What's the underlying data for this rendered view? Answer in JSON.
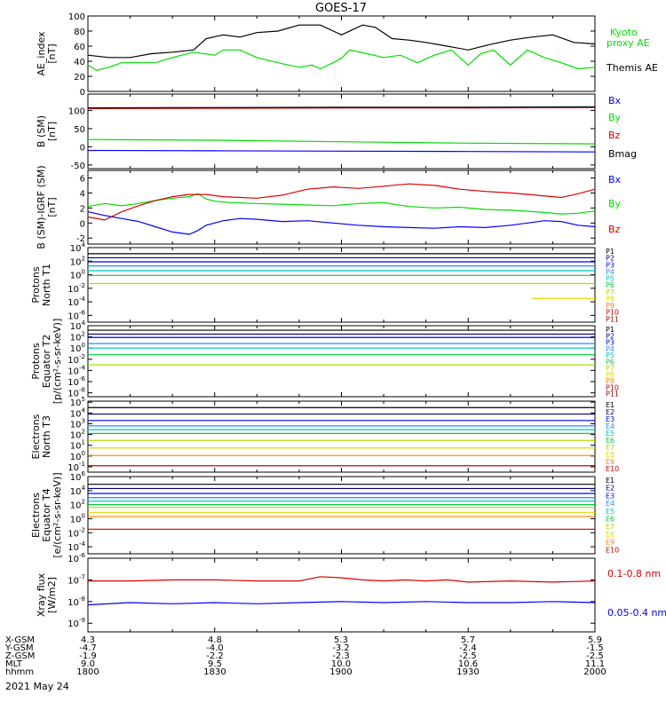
{
  "title": "GOES-17",
  "date_label": "2021 May 24",
  "colors": {
    "black": "#000000",
    "blue": "#0000ff",
    "green": "#00dd00",
    "red": "#dd0000",
    "p": [
      "#000000",
      "#000080",
      "#0000ff",
      "#1e90ff",
      "#00c0c0",
      "#00cc44",
      "#aadd00",
      "#dddd00",
      "#ff8000",
      "#cc0000",
      "#990000"
    ],
    "e": [
      "#000000",
      "#000080",
      "#0000ff",
      "#1e90ff",
      "#00c0c0",
      "#00cc44",
      "#aadd00",
      "#dddd00",
      "#ff8000",
      "#cc0000"
    ]
  },
  "orbit": {
    "rows": [
      {
        "label": "X-GSM",
        "values": [
          "4.3",
          "4.8",
          "5.3",
          "5.7",
          "5.9"
        ]
      },
      {
        "label": "Y-GSM",
        "values": [
          "-4.7",
          "-4.0",
          "-3.2",
          "-2.4",
          "-1.5"
        ]
      },
      {
        "label": "Z-GSM",
        "values": [
          "-1.9",
          "-2.2",
          "-2.3",
          "-2.5",
          "-2.5"
        ]
      },
      {
        "label": "MLT",
        "values": [
          "9.0",
          "9.5",
          "10.0",
          "10.6",
          "11.1"
        ]
      },
      {
        "label": "hhmm",
        "values": [
          "1800",
          "1830",
          "1900",
          "1930",
          "2000"
        ]
      }
    ]
  },
  "chart_data": [
    {
      "type": "line",
      "panel": "ae",
      "ylabel": "AE_index [nT]",
      "yticks": [
        "100",
        "80",
        "60",
        "40",
        "20",
        "0"
      ],
      "ylim": [
        0,
        100
      ],
      "time": "hhmm 1800-2000 UT",
      "series": [
        {
          "name": "Kyoto proxy AE",
          "color": "green",
          "t": [
            0,
            2,
            5,
            8,
            12,
            16,
            20,
            25,
            30,
            32,
            36,
            40,
            42,
            45,
            50,
            53,
            55,
            58,
            60,
            62,
            66,
            70,
            74,
            78,
            82,
            86,
            90,
            93,
            96,
            100,
            104,
            108,
            112,
            116,
            120
          ],
          "values": [
            35,
            28,
            32,
            38,
            38,
            38,
            45,
            52,
            48,
            55,
            55,
            45,
            42,
            38,
            32,
            35,
            30,
            38,
            44,
            55,
            50,
            45,
            48,
            38,
            48,
            55,
            35,
            50,
            55,
            35,
            55,
            45,
            38,
            30,
            32
          ]
        },
        {
          "name": "Themis AE",
          "color": "black",
          "t": [
            0,
            5,
            10,
            15,
            20,
            25,
            28,
            32,
            36,
            40,
            45,
            50,
            55,
            60,
            65,
            68,
            72,
            76,
            80,
            85,
            90,
            95,
            100,
            105,
            110,
            115,
            120
          ],
          "values": [
            48,
            45,
            45,
            50,
            52,
            55,
            70,
            75,
            72,
            78,
            80,
            88,
            88,
            75,
            88,
            85,
            70,
            68,
            65,
            60,
            55,
            62,
            68,
            72,
            75,
            65,
            63
          ]
        }
      ],
      "legend": [
        "Kyoto proxy AE",
        "Themis AE"
      ]
    },
    {
      "type": "line",
      "panel": "b",
      "ylabel": "B (SM) [nT]",
      "yticks": [
        "100",
        "50",
        "0",
        "-50"
      ],
      "ylim": [
        -60,
        145
      ],
      "series": [
        {
          "name": "Bx",
          "color": "blue",
          "t": [
            0,
            30,
            60,
            90,
            120
          ],
          "values": [
            -10,
            -11,
            -12,
            -13,
            -14
          ]
        },
        {
          "name": "By",
          "color": "green",
          "t": [
            0,
            30,
            60,
            90,
            120
          ],
          "values": [
            20,
            18,
            14,
            10,
            8
          ]
        },
        {
          "name": "Bz",
          "color": "red",
          "t": [
            0,
            30,
            60,
            90,
            120
          ],
          "values": [
            105,
            106,
            107,
            107,
            108
          ]
        },
        {
          "name": "Bmag",
          "color": "black",
          "t": [
            0,
            30,
            60,
            90,
            120
          ],
          "values": [
            107,
            108,
            109,
            109,
            110
          ]
        }
      ],
      "legend": [
        "Bx",
        "By",
        "Bz",
        "Bmag"
      ]
    },
    {
      "type": "line",
      "panel": "db",
      "ylabel": "B (SM)-IGRF (SM) [nT]",
      "yticks": [
        "6",
        "4",
        "2",
        "0",
        "-2"
      ],
      "ylim": [
        -2.8,
        7
      ],
      "series": [
        {
          "name": "Bx",
          "color": "blue",
          "t": [
            0,
            4,
            8,
            12,
            16,
            20,
            24,
            26,
            28,
            32,
            36,
            40,
            46,
            52,
            58,
            64,
            70,
            76,
            82,
            88,
            94,
            100,
            104,
            108,
            112,
            116,
            120
          ],
          "values": [
            1.5,
            1.0,
            0.6,
            0.2,
            -0.5,
            -1.2,
            -1.5,
            -1.0,
            -0.3,
            0.3,
            0.6,
            0.5,
            0.2,
            0.3,
            0.0,
            -0.3,
            -0.5,
            -0.6,
            -0.7,
            -0.5,
            -0.6,
            -0.3,
            0.0,
            0.3,
            0.2,
            -0.3,
            -0.5
          ]
        },
        {
          "name": "By",
          "color": "green",
          "t": [
            0,
            4,
            8,
            12,
            16,
            20,
            24,
            26,
            28,
            30,
            34,
            40,
            46,
            52,
            58,
            64,
            70,
            76,
            82,
            88,
            94,
            100,
            106,
            112,
            116,
            120
          ],
          "values": [
            2.2,
            2.6,
            2.3,
            2.6,
            3.0,
            3.3,
            3.5,
            3.9,
            3.2,
            2.9,
            2.7,
            2.6,
            2.5,
            2.4,
            2.3,
            2.6,
            2.7,
            2.2,
            2.0,
            2.1,
            1.8,
            1.7,
            1.5,
            1.2,
            1.3,
            1.6
          ]
        },
        {
          "name": "Bz",
          "color": "red",
          "t": [
            0,
            4,
            8,
            12,
            16,
            20,
            24,
            28,
            32,
            36,
            40,
            46,
            52,
            58,
            64,
            70,
            76,
            82,
            88,
            94,
            100,
            106,
            112,
            116,
            120
          ],
          "values": [
            0.8,
            0.4,
            1.5,
            2.3,
            3.0,
            3.5,
            3.8,
            3.8,
            3.5,
            3.4,
            3.3,
            3.7,
            4.5,
            4.8,
            4.6,
            4.9,
            5.2,
            5.0,
            4.5,
            4.2,
            4.0,
            3.7,
            3.4,
            3.9,
            4.5
          ]
        }
      ],
      "legend": [
        "Bx",
        "By",
        "Bz"
      ]
    },
    {
      "type": "line",
      "panel": "p1",
      "scale": "log",
      "ylabel": "Protons North T1",
      "yticks": [
        "10^4",
        "10^2",
        "10^0",
        "10^-2",
        "10^-4",
        "10^-6"
      ],
      "ylim_exp": [
        -7,
        4
      ],
      "channels": [
        "P1",
        "P2",
        "P3",
        "P4",
        "P5",
        "P6",
        "P7",
        "P8",
        "P9",
        "P10",
        "P11"
      ],
      "levels_exp": [
        3.1,
        2.5,
        1.9,
        1.3,
        0.6,
        -0.1,
        -1.3
      ],
      "partial": {
        "channel": "P9",
        "level_exp": -3.5,
        "t": [
          105,
          120
        ]
      }
    },
    {
      "type": "line",
      "panel": "p2",
      "scale": "log",
      "ylabel": "Protons Equator T2 [p/(cm²-s-sr-keV)]",
      "yticks": [
        "10^4",
        "10^2",
        "10^0",
        "10^-2",
        "10^-4",
        "10^-6",
        "10^-8"
      ],
      "ylim_exp": [
        -8.7,
        4
      ],
      "channels": [
        "P1",
        "P2",
        "P3",
        "P4",
        "P5",
        "P6",
        "P7",
        "P8",
        "P9",
        "P10",
        "P11"
      ],
      "levels_exp": [
        3.2,
        2.5,
        1.9,
        0.8,
        0.0,
        -1.2,
        -3.0
      ]
    },
    {
      "type": "line",
      "panel": "e1",
      "scale": "log",
      "ylabel": "Electrons North T3",
      "yticks": [
        "10^5",
        "10^4",
        "10^3",
        "10^2",
        "10^1",
        "10^0",
        "10^-1"
      ],
      "ylim_exp": [
        -1.5,
        5.1
      ],
      "channels": [
        "E1",
        "E2",
        "E3",
        "E4",
        "E5",
        "E6",
        "E7",
        "E8",
        "E9",
        "E10"
      ],
      "levels_exp": [
        4.5,
        3.9,
        3.3,
        2.8,
        2.45,
        2.1,
        1.45,
        0.75,
        0.05,
        -0.9
      ]
    },
    {
      "type": "line",
      "panel": "e2",
      "scale": "log",
      "ylabel": "Electrons Equator T4 [e/(cm²-s-sr-keV)]",
      "yticks": [
        "10^6",
        "10^4",
        "10^2",
        "10^0",
        "10^-2",
        "10^-4"
      ],
      "ylim_exp": [
        -5,
        6
      ],
      "channels": [
        "E1",
        "E2",
        "E3",
        "E4",
        "E5",
        "E6",
        "E7",
        "E8",
        "E9",
        "E10"
      ],
      "levels_exp": [
        4.9,
        4.3,
        3.6,
        3.0,
        2.5,
        2.0,
        1.6,
        0.9,
        0.3,
        -1.5
      ]
    },
    {
      "type": "line",
      "panel": "xray",
      "scale": "log",
      "ylabel": "Xray flux [W/m2]",
      "yticks": [
        "10^-6",
        "10^-7",
        "10^-8",
        "10^-9"
      ],
      "ylim_exp": [
        -9.4,
        -6
      ],
      "series": [
        {
          "name": "0.1-0.8 nm",
          "color": "red",
          "t": [
            0,
            10,
            20,
            30,
            40,
            50,
            55,
            60,
            65,
            70,
            75,
            80,
            85,
            90,
            100,
            110,
            120
          ],
          "values_exp": [
            -7.05,
            -7.05,
            -7.0,
            -7.0,
            -7.05,
            -7.05,
            -6.85,
            -6.9,
            -7.0,
            -7.05,
            -7.0,
            -7.05,
            -7.0,
            -7.1,
            -7.05,
            -7.1,
            -7.05
          ]
        },
        {
          "name": "0.05-0.4 nm",
          "color": "blue",
          "t": [
            0,
            10,
            20,
            30,
            40,
            50,
            60,
            70,
            80,
            90,
            100,
            110,
            120
          ],
          "values_exp": [
            -8.15,
            -8.05,
            -8.1,
            -8.05,
            -8.1,
            -8.05,
            -8.0,
            -8.05,
            -8.0,
            -8.05,
            -8.05,
            -8.0,
            -8.05
          ]
        }
      ],
      "legend": [
        "0.1-0.8 nm",
        "0.05-0.4 nm"
      ]
    }
  ]
}
